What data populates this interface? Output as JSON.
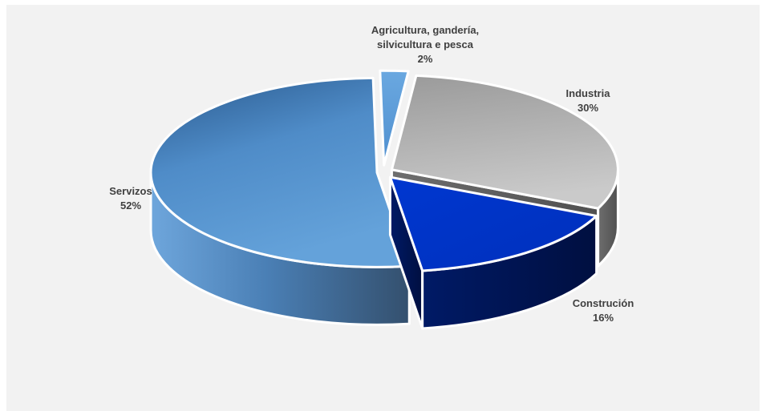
{
  "chart_data": {
    "type": "pie",
    "title": "",
    "three_d": true,
    "exploded": true,
    "legend": "none",
    "slices": [
      {
        "name": "Agricultura, gandería, silvicultura e pesca",
        "label_lines": [
          "Agricultura, gandería,",
          "silvicultura e pesca"
        ],
        "value": 2,
        "value_label": "2%",
        "color": "#5b9bd5"
      },
      {
        "name": "Industria",
        "label_lines": [
          "Industria"
        ],
        "value": 30,
        "value_label": "30%",
        "color": "#a6a6a6"
      },
      {
        "name": "Construción",
        "label_lines": [
          "Construción"
        ],
        "value": 16,
        "value_label": "16%",
        "color": "#0033cc"
      },
      {
        "name": "Servizos",
        "label_lines": [
          "Servizos"
        ],
        "value": 52,
        "value_label": "52%",
        "color": "#4a86c2"
      }
    ]
  }
}
